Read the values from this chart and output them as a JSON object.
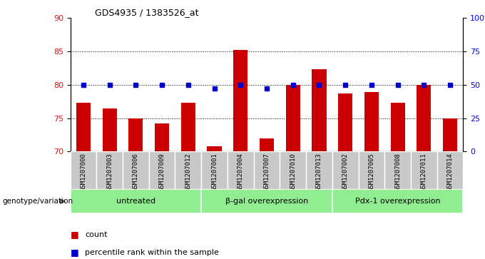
{
  "title": "GDS4935 / 1383526_at",
  "samples": [
    "GSM1207000",
    "GSM1207003",
    "GSM1207006",
    "GSM1207009",
    "GSM1207012",
    "GSM1207001",
    "GSM1207004",
    "GSM1207007",
    "GSM1207010",
    "GSM1207013",
    "GSM1207002",
    "GSM1207005",
    "GSM1207008",
    "GSM1207011",
    "GSM1207014"
  ],
  "counts": [
    77.3,
    76.5,
    75.0,
    74.2,
    77.3,
    70.8,
    85.2,
    72.0,
    80.0,
    82.3,
    78.7,
    78.9,
    77.3,
    80.0,
    75.0
  ],
  "percentiles": [
    50,
    50,
    50,
    50,
    50,
    47,
    50,
    47,
    50,
    50,
    50,
    50,
    50,
    50,
    50
  ],
  "groups": [
    {
      "label": "untreated",
      "start": 0,
      "end": 5
    },
    {
      "label": "β-gal overexpression",
      "start": 5,
      "end": 10
    },
    {
      "label": "Pdx-1 overexpression",
      "start": 10,
      "end": 15
    }
  ],
  "ylim_left": [
    70,
    90
  ],
  "ylim_right": [
    0,
    100
  ],
  "yticks_left": [
    70,
    75,
    80,
    85,
    90
  ],
  "yticks_right": [
    0,
    25,
    50,
    75,
    100
  ],
  "bar_color": "#CC0000",
  "dot_color": "#0000CC",
  "bg_xticklabels": "#c8c8c8",
  "bg_groups": "#90EE90",
  "legend_count_label": "count",
  "legend_pct_label": "percentile rank within the sample",
  "genotype_label": "genotype/variation"
}
